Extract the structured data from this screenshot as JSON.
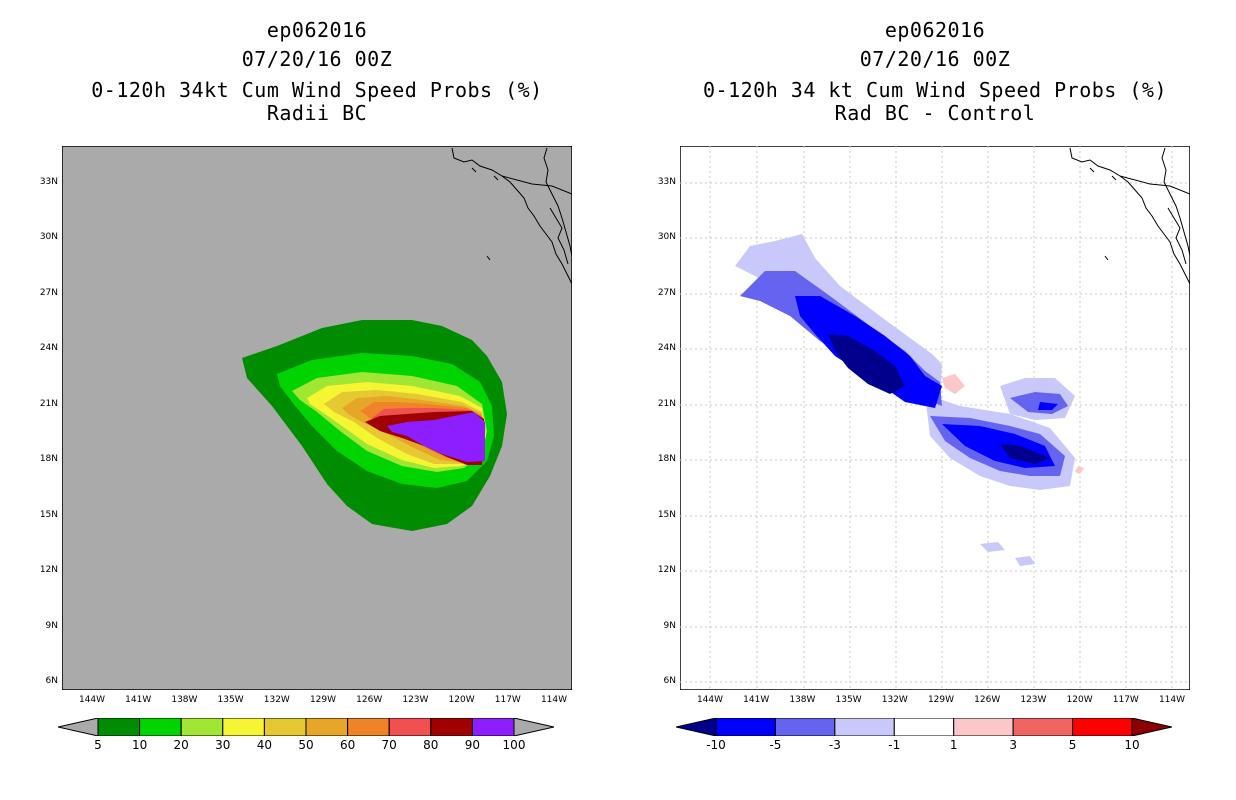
{
  "left_panel": {
    "title_line1": "ep062016",
    "title_line2": "07/20/16 00Z",
    "title_line3": "0-120h 34kt Cum Wind Speed Probs (%)",
    "title_line4": "Radii BC",
    "background_color": "#aaaaaa",
    "colorbar": {
      "labels": [
        "5",
        "10",
        "20",
        "30",
        "40",
        "50",
        "60",
        "70",
        "80",
        "90",
        "100"
      ],
      "colors": [
        "#008c00",
        "#00d400",
        "#a0e632",
        "#f5f532",
        "#e6c832",
        "#e6a628",
        "#f08228",
        "#f05050",
        "#a00000",
        "#8c1eff"
      ]
    }
  },
  "right_panel": {
    "title_line1": "ep062016",
    "title_line2": "07/20/16 00Z",
    "title_line3": "0-120h 34 kt Cum Wind Speed Probs (%)",
    "title_line4": "Rad BC - Control",
    "background_color": "#ffffff",
    "colorbar": {
      "labels": [
        "-10",
        "-5",
        "-3",
        "-1",
        "1",
        "3",
        "5",
        "10"
      ],
      "colors": [
        "#00008c",
        "#0000ff",
        "#6464f0",
        "#c8c8fa",
        "#ffffff",
        "#fac8c8",
        "#f06464",
        "#ff0000",
        "#8c0000"
      ]
    }
  },
  "lat_labels": [
    "33N",
    "30N",
    "27N",
    "24N",
    "21N",
    "18N",
    "15N",
    "12N",
    "9N",
    "6N"
  ],
  "lon_labels": [
    "144W",
    "141W",
    "138W",
    "135W",
    "132W",
    "129W",
    "126W",
    "123W",
    "120W",
    "117W",
    "114W"
  ]
}
